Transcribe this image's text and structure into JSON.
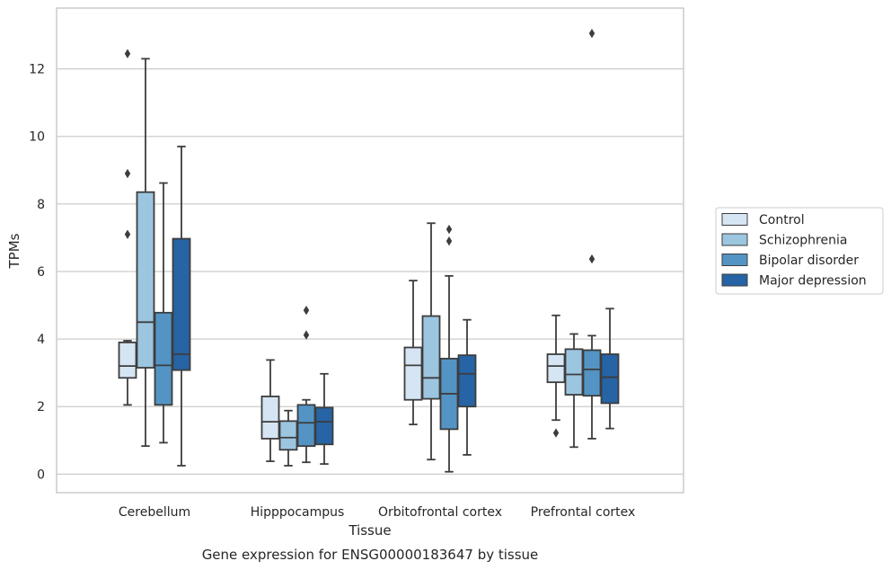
{
  "caption": "Gene expression for ENSG00000183647 by tissue",
  "colors": {
    "Control": "#d6e5f3",
    "Schizophrenia": "#9cc5e0",
    "Bipolar disorder": "#5394c4",
    "Major depression": "#2664a5",
    "outline": "#3d3d3d",
    "grid": "#cccccc",
    "frame": "#cccccc"
  },
  "chart_data": {
    "type": "box",
    "xlabel": "Tissue",
    "ylabel": "TPMs",
    "ylim": [
      -0.55,
      13.8
    ],
    "yticks": [
      0,
      2,
      4,
      6,
      8,
      10,
      12
    ],
    "grid": true,
    "legend_position": "right",
    "categories": [
      "Cerebellum",
      "Hipppocampus",
      "Orbitofrontal cortex",
      "Prefrontal cortex"
    ],
    "series": [
      {
        "name": "Control",
        "boxes": [
          {
            "whislo": 2.05,
            "q1": 2.85,
            "med": 3.2,
            "q3": 3.9,
            "whishi": 3.95,
            "fliers": [
              7.1,
              8.9,
              12.45
            ]
          },
          {
            "whislo": 0.38,
            "q1": 1.05,
            "med": 1.55,
            "q3": 2.3,
            "whishi": 3.38,
            "fliers": []
          },
          {
            "whislo": 1.47,
            "q1": 2.2,
            "med": 3.22,
            "q3": 3.75,
            "whishi": 5.73,
            "fliers": []
          },
          {
            "whislo": 1.6,
            "q1": 2.72,
            "med": 3.2,
            "q3": 3.55,
            "whishi": 4.7,
            "fliers": [
              1.22
            ]
          }
        ]
      },
      {
        "name": "Schizophrenia",
        "boxes": [
          {
            "whislo": 0.83,
            "q1": 3.15,
            "med": 4.5,
            "q3": 8.35,
            "whishi": 12.3,
            "fliers": []
          },
          {
            "whislo": 0.25,
            "q1": 0.72,
            "med": 1.08,
            "q3": 1.57,
            "whishi": 1.88,
            "fliers": []
          },
          {
            "whislo": 0.43,
            "q1": 2.23,
            "med": 2.85,
            "q3": 4.68,
            "whishi": 7.43,
            "fliers": []
          },
          {
            "whislo": 0.8,
            "q1": 2.35,
            "med": 2.95,
            "q3": 3.7,
            "whishi": 4.15,
            "fliers": []
          }
        ]
      },
      {
        "name": "Bipolar disorder",
        "boxes": [
          {
            "whislo": 0.93,
            "q1": 2.05,
            "med": 3.22,
            "q3": 4.78,
            "whishi": 8.62,
            "fliers": []
          },
          {
            "whislo": 0.35,
            "q1": 0.83,
            "med": 1.52,
            "q3": 2.05,
            "whishi": 2.2,
            "fliers": [
              4.12,
              4.85
            ]
          },
          {
            "whislo": 0.07,
            "q1": 1.33,
            "med": 2.38,
            "q3": 3.42,
            "whishi": 5.87,
            "fliers": [
              6.9,
              7.25
            ]
          },
          {
            "whislo": 1.05,
            "q1": 2.32,
            "med": 3.1,
            "q3": 3.67,
            "whishi": 4.1,
            "fliers": [
              6.37,
              13.05
            ]
          }
        ]
      },
      {
        "name": "Major depression",
        "boxes": [
          {
            "whislo": 0.25,
            "q1": 3.08,
            "med": 3.55,
            "q3": 6.97,
            "whishi": 9.7,
            "fliers": []
          },
          {
            "whislo": 0.3,
            "q1": 0.88,
            "med": 1.55,
            "q3": 1.97,
            "whishi": 2.97,
            "fliers": []
          },
          {
            "whislo": 0.57,
            "q1": 2.0,
            "med": 2.97,
            "q3": 3.52,
            "whishi": 4.57,
            "fliers": []
          },
          {
            "whislo": 1.35,
            "q1": 2.1,
            "med": 2.87,
            "q3": 3.55,
            "whishi": 4.9,
            "fliers": []
          }
        ]
      }
    ]
  }
}
